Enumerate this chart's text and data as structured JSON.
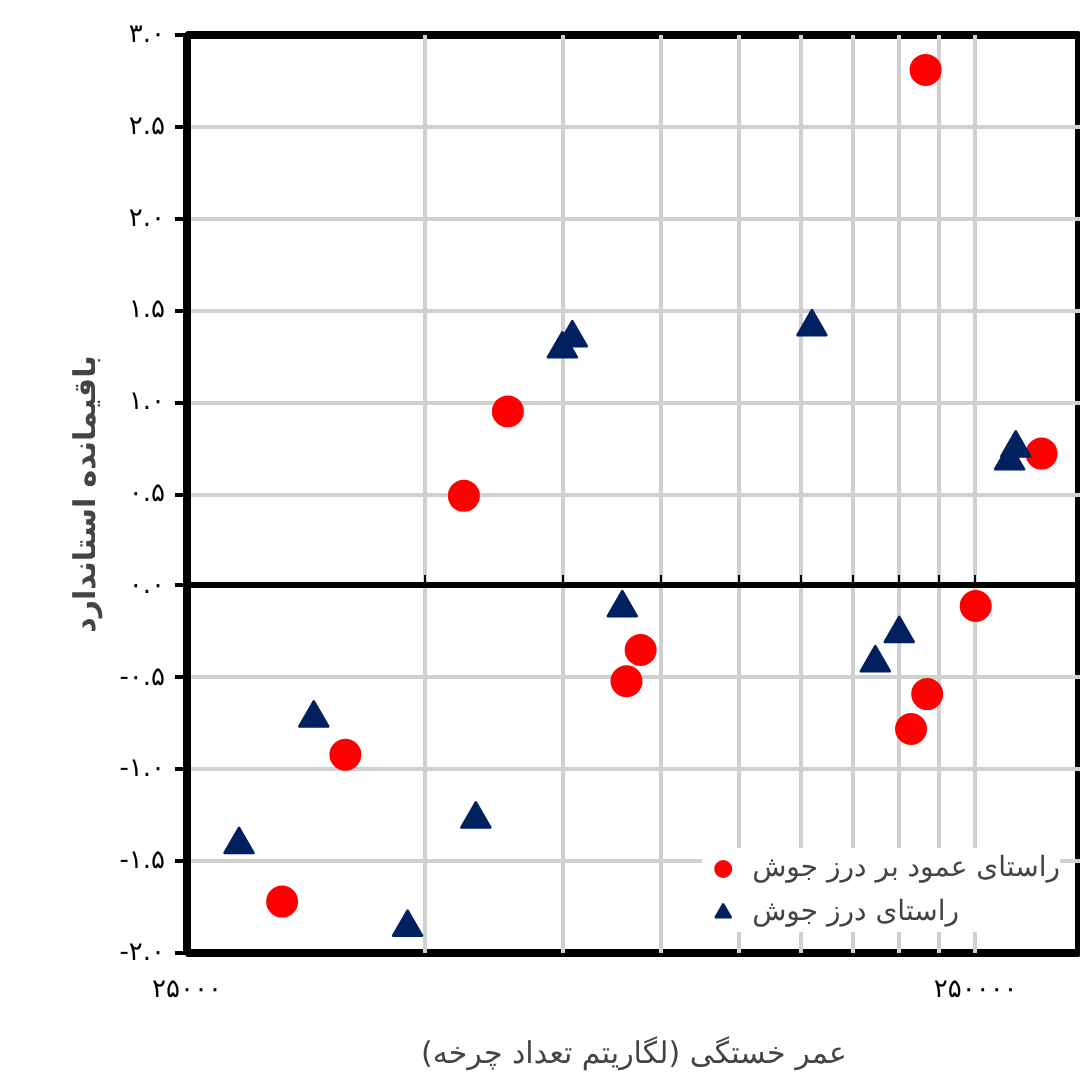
{
  "chart_data": {
    "type": "scatter",
    "xlabel": "عمر خستگی (لگاریتم تعداد چرخه)",
    "ylabel": "باقیمانده استاندارد",
    "log": "x",
    "grid": true,
    "legend": "bottom right",
    "xlim": [
      25000,
      340000
    ],
    "ylim": [
      -2.0,
      3.0
    ],
    "xticks": [
      {
        "value": 25000,
        "label": "۲۵۰۰۰"
      },
      {
        "value": 50000,
        "label": null
      },
      {
        "value": 75000,
        "label": null
      },
      {
        "value": 100000,
        "label": null
      },
      {
        "value": 125000,
        "label": null
      },
      {
        "value": 150000,
        "label": null
      },
      {
        "value": 175000,
        "label": null
      },
      {
        "value": 200000,
        "label": null
      },
      {
        "value": 225000,
        "label": null
      },
      {
        "value": 250000,
        "label": "۲۵۰۰۰۰"
      }
    ],
    "yticks": [
      {
        "value": -2.0,
        "label": "-۲.۰"
      },
      {
        "value": -1.5,
        "label": "-۱.۵"
      },
      {
        "value": -1.0,
        "label": "-۱.۰"
      },
      {
        "value": -0.5,
        "label": "-۰.۵"
      },
      {
        "value": 0.0,
        "label": "۰.۰"
      },
      {
        "value": 0.5,
        "label": "۰.۵"
      },
      {
        "value": 1.0,
        "label": "۱.۰"
      },
      {
        "value": 1.5,
        "label": "۱.۵"
      },
      {
        "value": 2.0,
        "label": "۲.۰"
      },
      {
        "value": 2.5,
        "label": "۲.۵"
      },
      {
        "value": 3.0,
        "label": "۳.۰"
      }
    ],
    "series": [
      {
        "name": "راستای عمود بر درز جوش",
        "color": "#ff0000",
        "marker": "circle",
        "x": [
          56100,
          63800,
          216000,
          303000,
          33000,
          39700,
          90200,
          94000,
          250000,
          217000,
          207000
        ],
        "values": [
          0.49,
          0.95,
          2.81,
          0.72,
          -1.72,
          -0.92,
          -0.52,
          -0.35,
          -0.11,
          -0.59,
          -0.78
        ]
      },
      {
        "name": "راستای درز جوش",
        "color": "#002060",
        "marker": "triangle",
        "x": [
          74800,
          77000,
          155000,
          281000,
          276000,
          89100,
          200000,
          186500,
          36200,
          29100,
          47600,
          58100
        ],
        "values": [
          1.29,
          1.35,
          1.41,
          0.75,
          0.68,
          -0.12,
          -0.26,
          -0.42,
          -0.72,
          -1.41,
          -1.86,
          -1.27
        ]
      }
    ]
  }
}
